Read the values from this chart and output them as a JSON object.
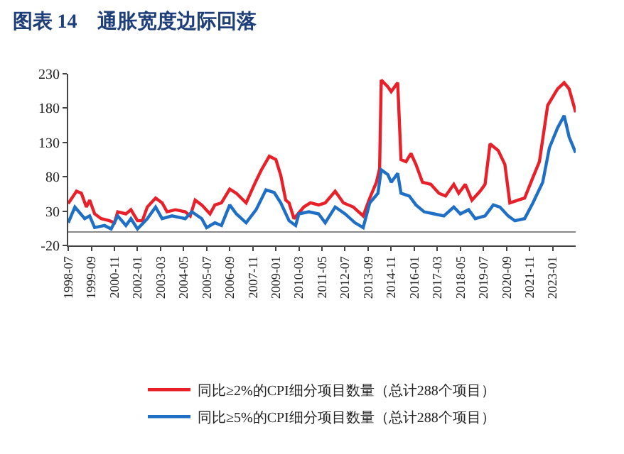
{
  "chart_data": {
    "type": "line",
    "title": "图表 14　通胀宽度边际回落",
    "xlim": [
      "1998-07",
      "2024-03"
    ],
    "xticks": [
      "1998-07",
      "1999-09",
      "2000-11",
      "2002-01",
      "2003-03",
      "2004-05",
      "2005-07",
      "2006-09",
      "2007-11",
      "2009-01",
      "2010-03",
      "2011-05",
      "2012-07",
      "2013-09",
      "2014-11",
      "2016-01",
      "2017-03",
      "2018-05",
      "2019-07",
      "2020-09",
      "2021-11",
      "2023-01"
    ],
    "ylim": [
      -20,
      230
    ],
    "yticks": [
      -20,
      30,
      80,
      130,
      180,
      230
    ],
    "legend": "bottom",
    "series": [
      {
        "name": "同比≥2%的CPI细分项目数量（总计288个项目）",
        "color": "#e8202a",
        "x": [
          "1998-07",
          "1998-12",
          "1999-03",
          "1999-06",
          "1999-08",
          "1999-11",
          "2000-03",
          "2000-08",
          "2000-11",
          "2001-01",
          "2001-06",
          "2001-09",
          "2002-01",
          "2002-04",
          "2002-07",
          "2002-12",
          "2003-04",
          "2003-07",
          "2003-12",
          "2004-06",
          "2004-09",
          "2004-12",
          "2005-04",
          "2005-09",
          "2005-12",
          "2006-04",
          "2006-09",
          "2007-01",
          "2007-07",
          "2007-12",
          "2008-04",
          "2008-09",
          "2009-01",
          "2009-04",
          "2009-07",
          "2009-09",
          "2009-12",
          "2010-06",
          "2010-10",
          "2011-03",
          "2011-07",
          "2012-01",
          "2012-06",
          "2012-12",
          "2013-06",
          "2013-10",
          "2014-02",
          "2014-04",
          "2014-05",
          "2014-09",
          "2014-11",
          "2015-03",
          "2015-05",
          "2015-08",
          "2015-11",
          "2016-02",
          "2016-06",
          "2016-11",
          "2017-04",
          "2017-08",
          "2018-01",
          "2018-04",
          "2018-08",
          "2018-12",
          "2019-05",
          "2019-08",
          "2019-11",
          "2020-04",
          "2020-08",
          "2020-11",
          "2021-04",
          "2021-08",
          "2022-01",
          "2022-05",
          "2022-10",
          "2023-04",
          "2023-08",
          "2023-11",
          "2024-03"
        ],
        "values": [
          41,
          59,
          56,
          36,
          46,
          26,
          19,
          16,
          13,
          29,
          26,
          32,
          16,
          16,
          36,
          49,
          42,
          29,
          32,
          29,
          23,
          46,
          39,
          26,
          39,
          42,
          62,
          56,
          42,
          69,
          89,
          110,
          105,
          82,
          46,
          42,
          19,
          36,
          42,
          39,
          42,
          59,
          42,
          36,
          23,
          49,
          72,
          92,
          221,
          211,
          204,
          217,
          105,
          102,
          114,
          98,
          72,
          69,
          56,
          52,
          69,
          56,
          69,
          46,
          59,
          69,
          128,
          118,
          98,
          42,
          46,
          49,
          79,
          102,
          184,
          208,
          217,
          208,
          174
        ]
      },
      {
        "name": "同比≥5%的CPI细分项目数量（总计288个项目）",
        "color": "#1f6fc5",
        "x": [
          "1998-07",
          "1998-11",
          "1999-05",
          "1999-08",
          "1999-11",
          "2000-05",
          "2000-09",
          "2001-01",
          "2001-06",
          "2001-09",
          "2002-01",
          "2002-07",
          "2002-12",
          "2003-04",
          "2003-10",
          "2004-06",
          "2004-10",
          "2005-04",
          "2005-07",
          "2005-12",
          "2006-04",
          "2006-09",
          "2007-01",
          "2007-07",
          "2008-01",
          "2008-07",
          "2008-12",
          "2009-04",
          "2009-09",
          "2010-01",
          "2010-03",
          "2010-09",
          "2011-03",
          "2011-07",
          "2012-01",
          "2012-07",
          "2013-01",
          "2013-06",
          "2013-10",
          "2014-03",
          "2014-05",
          "2014-09",
          "2014-11",
          "2015-03",
          "2015-05",
          "2015-10",
          "2016-02",
          "2016-07",
          "2017-01",
          "2017-07",
          "2018-01",
          "2018-05",
          "2018-10",
          "2019-02",
          "2019-08",
          "2020-01",
          "2020-05",
          "2020-10",
          "2021-02",
          "2021-08",
          "2022-01",
          "2022-07",
          "2022-11",
          "2023-04",
          "2023-08",
          "2023-11",
          "2024-03"
        ],
        "values": [
          13,
          36,
          19,
          23,
          6,
          9,
          4,
          23,
          9,
          19,
          4,
          19,
          36,
          19,
          23,
          19,
          29,
          19,
          6,
          13,
          9,
          39,
          26,
          13,
          32,
          61,
          57,
          42,
          16,
          9,
          26,
          29,
          26,
          13,
          36,
          26,
          13,
          6,
          42,
          56,
          90,
          83,
          72,
          85,
          56,
          52,
          39,
          29,
          26,
          23,
          36,
          26,
          32,
          19,
          23,
          39,
          36,
          23,
          16,
          19,
          42,
          72,
          122,
          151,
          169,
          138,
          115
        ]
      }
    ]
  }
}
